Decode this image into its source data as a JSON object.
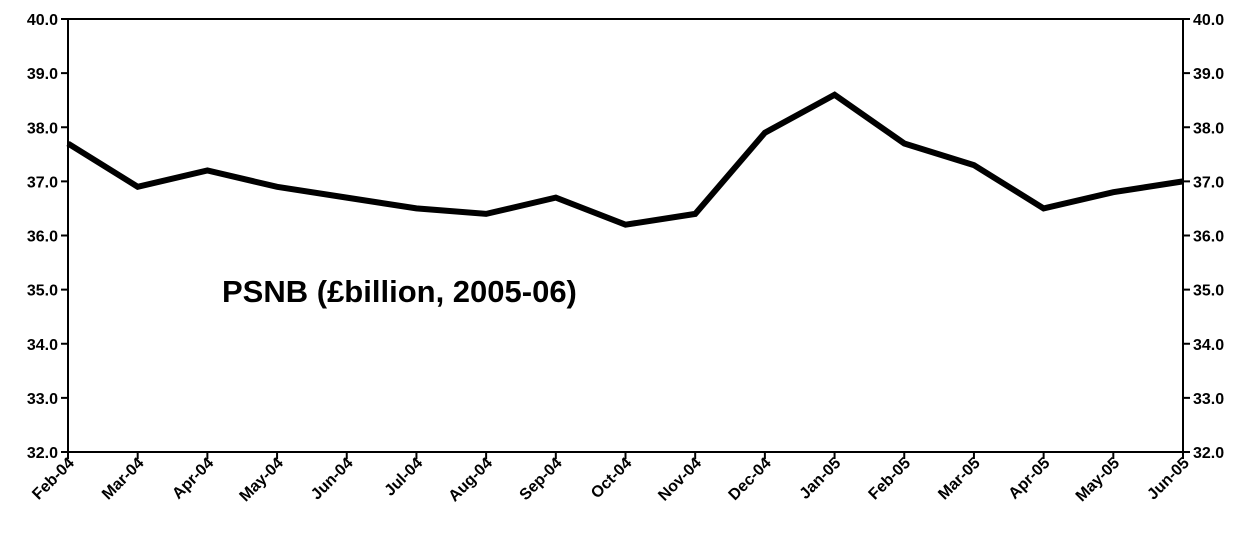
{
  "chart_data": {
    "type": "line",
    "title": "",
    "annotation": "PSNB (£billion, 2005-06)",
    "xlabel": "",
    "ylabel": "",
    "categories": [
      "Feb-04",
      "Mar-04",
      "Apr-04",
      "May-04",
      "Jun-04",
      "Jul-04",
      "Aug-04",
      "Sep-04",
      "Oct-04",
      "Nov-04",
      "Dec-04",
      "Jan-05",
      "Feb-05",
      "Mar-05",
      "Apr-05",
      "May-05",
      "Jun-05"
    ],
    "series": [
      {
        "values": [
          37.7,
          36.9,
          37.2,
          36.9,
          36.7,
          36.5,
          36.4,
          36.7,
          36.2,
          36.4,
          37.9,
          38.6,
          37.7,
          37.3,
          36.5,
          36.8,
          37.0
        ]
      }
    ],
    "ylim": [
      32.0,
      40.0
    ],
    "yticks": [
      "32.0",
      "33.0",
      "34.0",
      "35.0",
      "36.0",
      "37.0",
      "38.0",
      "39.0",
      "40.0"
    ],
    "y_axes": "left-and-right",
    "grid": false,
    "legend": "none",
    "line_color": "#000000"
  }
}
